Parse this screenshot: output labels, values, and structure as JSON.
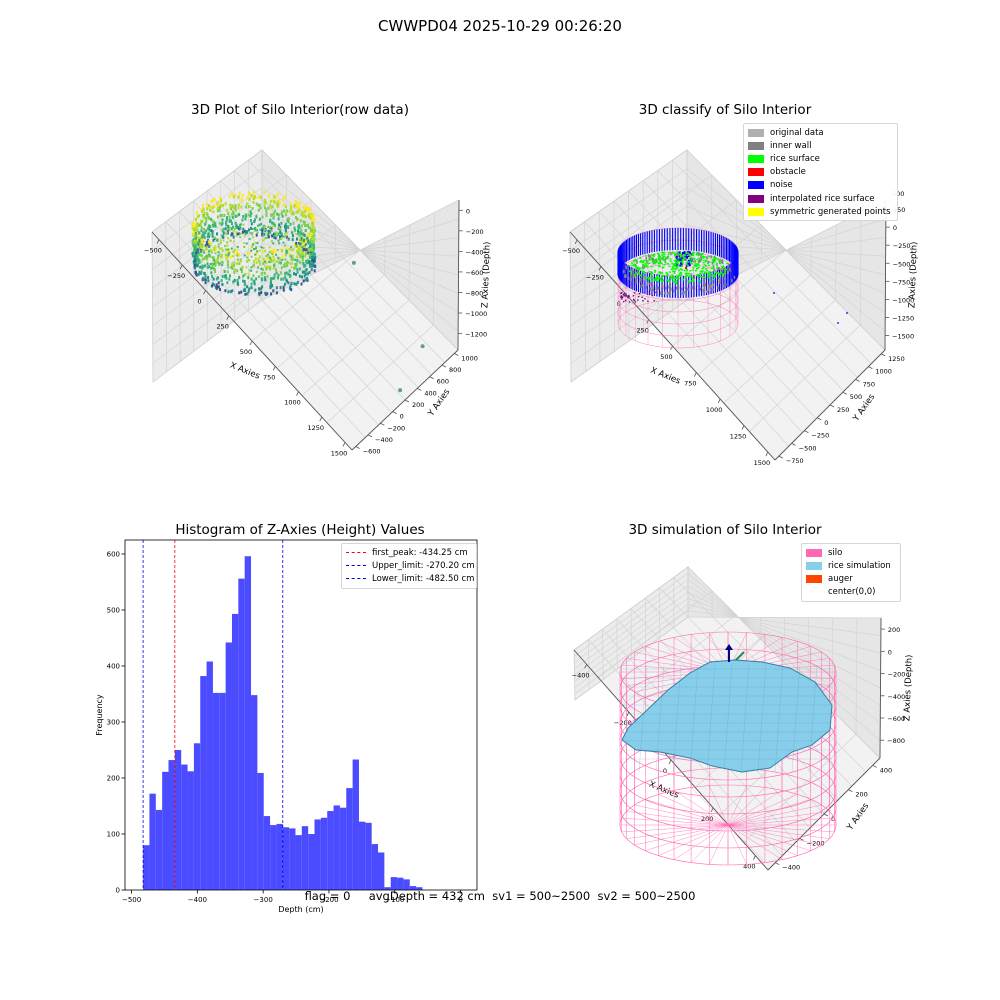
{
  "figure": {
    "suptitle": "CWWPD04 2025-10-29 00:26:20",
    "footer": {
      "flag": "flag = 0",
      "avg_depth": "avgDepth = 432 cm",
      "sv1": "sv1 = 500~2500",
      "sv2": "sv2 = 500~2500"
    }
  },
  "colors": {
    "original_data": "#b0b0b0",
    "inner_wall": "#808080",
    "rice_surface": "#00ff00",
    "obstacle": "#ff0000",
    "noise": "#0000ff",
    "interpolated_rice_surface": "#800080",
    "symmetric_generated_points": "#ffff00",
    "silo": "#ff69b4",
    "rice_simulation": "#87ceeb",
    "auger": "#ff4500",
    "histogram_bar": "#4b4bff",
    "first_peak_line": "#ff0000",
    "limit_line": "#0000ff"
  },
  "chart_data": [
    {
      "type": "scatter",
      "title": "3D Plot of Silo Interior(row data)",
      "xlabel": "X Axies",
      "ylabel": "Y Axies",
      "zlabel": "Z Axies (Depth)",
      "x_ticks": [
        "−500",
        "−250",
        "0",
        "250",
        "500",
        "750",
        "1000",
        "1250",
        "1500"
      ],
      "y_ticks": [
        "−600",
        "−400",
        "−200",
        "0",
        "200",
        "400",
        "600",
        "800",
        "1000"
      ],
      "z_ticks": [
        "0",
        "−200",
        "−400",
        "−600",
        "−800",
        "−1000",
        "−1200"
      ],
      "outliers": [
        {
          "x": 900,
          "y": 300,
          "z": -620
        },
        {
          "x": 1450,
          "y": 500,
          "z": -900
        },
        {
          "x": 1500,
          "y": 100,
          "z": -1050
        }
      ]
    },
    {
      "type": "scatter",
      "title": "3D classify of Silo Interior",
      "xlabel": "X Axies",
      "ylabel": "Y Axies",
      "zlabel": "Z Axies (Depth)",
      "x_ticks": [
        "−500",
        "−250",
        "0",
        "250",
        "500",
        "750",
        "1000",
        "1250",
        "1500"
      ],
      "y_ticks": [
        "−750",
        "−500",
        "−250",
        "0",
        "250",
        "500",
        "750",
        "1000",
        "1250"
      ],
      "z_ticks": [
        "250",
        "0",
        "−250",
        "−500",
        "−750",
        "−1000",
        "−1250",
        "−1500"
      ],
      "z_extra_tick": "500",
      "legend": [
        "original data",
        "inner wall",
        "rice surface",
        "obstacle",
        "noise",
        "interpolated rice surface",
        "symmetric generated points"
      ]
    },
    {
      "type": "bar",
      "title": "Histogram of Z-Axies (Height) Values",
      "xlabel": "Depth (cm)",
      "ylabel": "Frequency",
      "xlim": [
        -510,
        25
      ],
      "ylim": [
        0,
        625
      ],
      "x_ticks": [
        -500,
        -400,
        -300,
        -200,
        -100,
        0
      ],
      "x_tick_labels": [
        "−500",
        "−400",
        "−300",
        "−200",
        "−100",
        "0"
      ],
      "y_ticks": [
        0,
        100,
        200,
        300,
        400,
        500,
        600
      ],
      "bin_start": -482.5,
      "bin_width": 9.65,
      "values": [
        80,
        172,
        143,
        211,
        232,
        250,
        224,
        212,
        262,
        382,
        408,
        352,
        352,
        442,
        493,
        556,
        596,
        348,
        209,
        132,
        116,
        118,
        112,
        110,
        98,
        114,
        100,
        126,
        129,
        141,
        151,
        147,
        182,
        233,
        122,
        120,
        82,
        67,
        5,
        23,
        22,
        19,
        7,
        5
      ],
      "lines": [
        {
          "value": -434.25,
          "style": "first_peak",
          "label": "first_peak: -434.25 cm"
        },
        {
          "value": -270.2,
          "style": "limit",
          "label": "Upper_limit: -270.20 cm"
        },
        {
          "value": -482.5,
          "style": "limit",
          "label": "Lower_limit: -482.50 cm"
        }
      ]
    },
    {
      "type": "area",
      "title": "3D simulation of Silo Interior",
      "xlabel": "X Axies",
      "ylabel": "Y Axies",
      "zlabel": "Z Axies (Depth)",
      "x_ticks": [
        "−400",
        "−200",
        "0",
        "200",
        "400"
      ],
      "y_ticks": [
        "−400",
        "−200",
        "0",
        "200",
        "400"
      ],
      "z_ticks": [
        "200",
        "0",
        "−200",
        "−400",
        "−600",
        "−800"
      ],
      "legend": [
        "silo",
        "rice simulation",
        "auger",
        "center(0,0)"
      ]
    }
  ]
}
